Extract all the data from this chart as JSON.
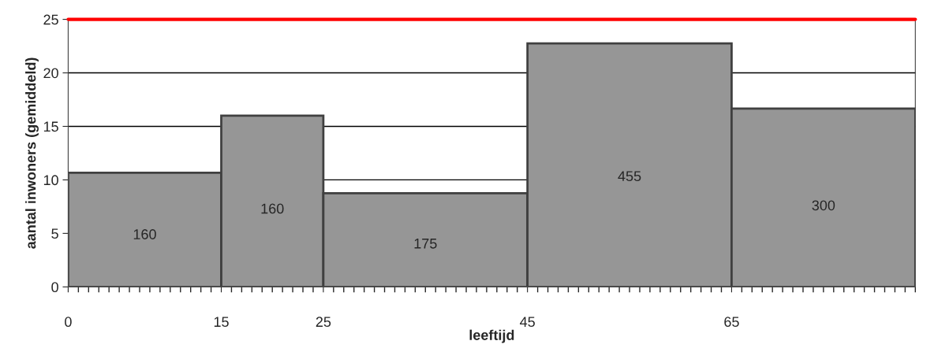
{
  "chart_data": {
    "type": "histogram",
    "xlabel": "leeftijd",
    "ylabel": "aantal inwoners (gemiddeld)",
    "bins": [
      0,
      15,
      25,
      45,
      65,
      83
    ],
    "values": [
      10.67,
      16,
      8.75,
      22.75,
      16.67
    ],
    "annotations": [
      "160",
      "160",
      "175",
      "455",
      "300"
    ],
    "color": "#969696",
    "xlim": [
      0,
      83
    ],
    "xticks": [
      0,
      15,
      25,
      45,
      65
    ],
    "ylim": [
      0,
      25
    ],
    "yticks": [
      0,
      5,
      10,
      15,
      20,
      25
    ],
    "grid": "y",
    "ref_lines": [
      {
        "axis": "y",
        "value": 25,
        "color": "#ff0000"
      }
    ]
  }
}
